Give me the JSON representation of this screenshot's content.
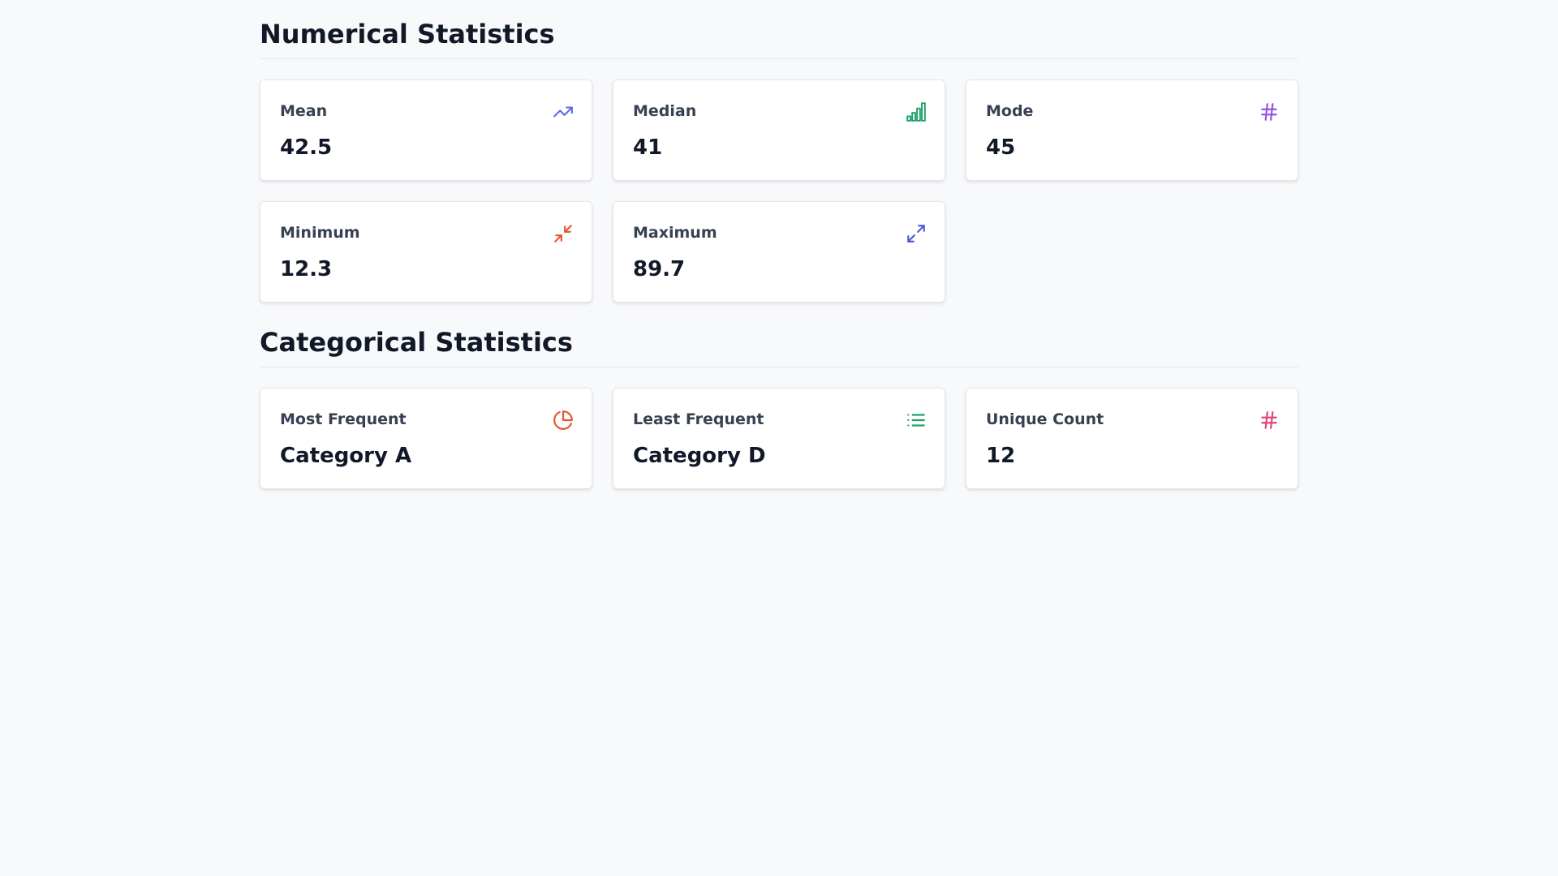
{
  "numerical": {
    "title": "Numerical Statistics",
    "cards": [
      {
        "label": "Mean",
        "value": "42.5",
        "icon": "trending-up-icon",
        "color": "#5b6ee1"
      },
      {
        "label": "Median",
        "value": "41",
        "icon": "bar-chart-icon",
        "color": "#22a06b"
      },
      {
        "label": "Mode",
        "value": "45",
        "icon": "hash-icon",
        "color": "#9b51e0"
      },
      {
        "label": "Minimum",
        "value": "12.3",
        "icon": "minimize-icon",
        "color": "#e8542b"
      },
      {
        "label": "Maximum",
        "value": "89.7",
        "icon": "maximize-icon",
        "color": "#4f5bd5"
      }
    ]
  },
  "categorical": {
    "title": "Categorical Statistics",
    "cards": [
      {
        "label": "Most Frequent",
        "value": "Category A",
        "icon": "pie-chart-icon",
        "color": "#e8542b"
      },
      {
        "label": "Least Frequent",
        "value": "Category D",
        "icon": "list-icon",
        "color": "#22a06b"
      },
      {
        "label": "Unique Count",
        "value": "12",
        "icon": "hash-icon",
        "color": "#e0457b"
      }
    ]
  }
}
